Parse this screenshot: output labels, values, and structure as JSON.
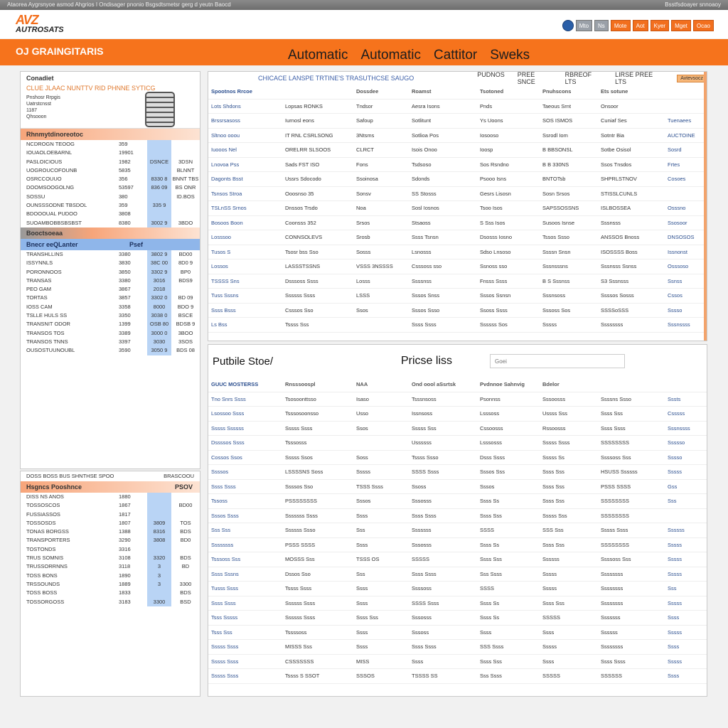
{
  "topbar": {
    "left": "Ataorea Aygrsnyoe asmod Ahgrios I Ondisager pnonio Bsgsdtsmetsr gerg d yeutn Baocd",
    "right": "Bsstfsdoayer snnoaoy"
  },
  "logo": {
    "mark": "AVZ",
    "text": "AUTROSATS"
  },
  "header_buttons": [
    {
      "label": "",
      "style": "b"
    },
    {
      "label": "Mto",
      "style": "g"
    },
    {
      "label": "Ns",
      "style": "g"
    },
    {
      "label": "Mote",
      "style": "o"
    },
    {
      "label": "Aot",
      "style": "o"
    },
    {
      "label": "Kyer",
      "style": "o"
    },
    {
      "label": "Mget",
      "style": "o"
    },
    {
      "label": "Ocao",
      "style": "o"
    }
  ],
  "nav": {
    "brand": "OJ GRAINGITARIS",
    "links": [
      "Automatic",
      "Automatic",
      "Cattitor",
      "Sweks"
    ]
  },
  "colors": {
    "accent": "#f6731c",
    "link": "#2c4f8f",
    "highlight": "#b9d4f5"
  },
  "left_panel": {
    "promo_title": "Conadiet",
    "promo_subtitle": "CLUE JLAAC NUNTTV RID PHNNE SYTICG",
    "promo_lines": [
      "Pnshosr Rrpgis",
      "Uatrstcnsst",
      "1187",
      "Qhsooon"
    ],
    "section1": "Rhnmytdinoreotoc",
    "section2": "Booctsoeaa",
    "section3": "Bnecr eeQLanter",
    "section3_val": "Psef",
    "rows": [
      [
        "NCDROGN TEOOG",
        "359",
        "",
        ""
      ],
      [
        "IOUAOLOEBARNL",
        "19901",
        "",
        ""
      ],
      [
        "PASLOICIOUS",
        "1982",
        "DSNCE",
        "3DSN"
      ],
      [
        "UOGROUCOFOUNB",
        "5835",
        "",
        "BLNNT"
      ],
      [
        "OSRCCOUUO",
        "356",
        "8330 8",
        "BNNT TBS"
      ],
      [
        "DOOMSOOGOLNG",
        "53597",
        "836 09",
        "BS ONR"
      ],
      [
        "SOSSU",
        "380",
        "",
        "ID.BOS"
      ],
      [
        "OUNSSSODNE TBSDOL",
        "359",
        "335 9",
        ""
      ],
      [
        "BDOOOUAL PUDOO",
        "3808",
        "",
        ""
      ],
      [
        "SUOAMBOBBSBSBST",
        "8380",
        "3002 9",
        "3BDO"
      ],
      [
        "TRANSHLLINS",
        "3380",
        "3802 9",
        "BD00"
      ],
      [
        "ISSYNNLS",
        "3830",
        "38C 00",
        "8D0 9"
      ],
      [
        "PORONNOOS",
        "3850",
        "3302 9",
        "BP0"
      ],
      [
        "TRANSAS",
        "3380",
        "3016",
        "BDS9"
      ],
      [
        "PEO GAM",
        "3867",
        "2018",
        ""
      ],
      [
        "TORTAS",
        "3857",
        "3302 0",
        "BD 09"
      ],
      [
        "IOSS CAM",
        "3358",
        "8000",
        "BDO 9"
      ],
      [
        "TSLLE HULS SS",
        "3350",
        "3038 0",
        "BSCE"
      ],
      [
        "TRANSNIT ODOR",
        "1399",
        "OSB 80",
        "BDSB 9"
      ],
      [
        "TRANSOS TOS",
        "3389",
        "3000 0",
        "3BOO"
      ],
      [
        "TRANSOS TNNS",
        "3397",
        "3030",
        "3SOS"
      ],
      [
        "OUSOSTUUNOUBL",
        "3590",
        "3050 9",
        "BDS 08"
      ]
    ],
    "panel2_title": "DOSS BOSS BUS SHNTHSE SPOO",
    "panel2_action": "BRASCOOU",
    "panel2_head": "Hsgncs Pooshnce",
    "panel2_head_val": "PSOV",
    "rows2": [
      [
        "DISS NS ANOS",
        "1880",
        "",
        ""
      ],
      [
        "TOSSOSCOS",
        "1867",
        "",
        "BD00"
      ],
      [
        "FUSSIASSOS",
        "1817",
        "",
        ""
      ],
      [
        "TOSSOSDS",
        "1807",
        "3809",
        "TOS"
      ],
      [
        "TONAS BORGSS",
        "1388",
        "8316",
        "BDS"
      ],
      [
        "TRANSPORTERS",
        "3290",
        "3808",
        "BD0"
      ],
      [
        "TOSTONDS",
        "3316",
        "",
        ""
      ],
      [
        "TRUS SOMNIS",
        "3108",
        "3320",
        "BDS"
      ],
      [
        "TRUSSORRNNS",
        "3118",
        "3",
        "BD"
      ],
      [
        "TOSS BONS",
        "1890",
        "3",
        ""
      ],
      [
        "TRSSOUNDS",
        "1889",
        "3",
        "3300"
      ],
      [
        "TOSS BOSS",
        "1833",
        "",
        "BDS"
      ],
      [
        "TOSSORGOSS",
        "3183",
        "3300",
        "BSD"
      ]
    ]
  },
  "upper_table": {
    "title": "CHICACE LANSPE TRTINE'S TRASUTHCSE SAUGO",
    "menu": [
      "PUDNOS",
      "PREE SNCE",
      "RBREOF LTS",
      "LIRSE PREE LTS"
    ],
    "badge": "Avtevsocz",
    "header": [
      "Spootnos Rrcoe",
      "",
      "Dossdee",
      "Roamst",
      "Tsotoned",
      "Pnuhscons",
      "Ets sotune",
      ""
    ],
    "rows": [
      [
        "Lots Shdons",
        "Lopsas RONKS",
        "Tndsor",
        "Aesra Isons",
        "Pnds",
        "Taeous Srnt",
        "Onsoor",
        ""
      ],
      [
        "Brssrsasoss",
        "Iurnosl eons",
        "Safoup",
        "Sotlitunt",
        "Ys Uoons",
        "SOS ISMOS",
        "Cuniaf Ses",
        "Tuenaees"
      ],
      [
        "Sltnoo ooou",
        "IT RNL CSRLSONG",
        "3Ntsms",
        "Sotlioa Pos",
        "Iosooso",
        "Ssrodl Iom",
        "Sotntr Bia",
        "AUCTOINE"
      ],
      [
        "Iuooos Nel",
        "ORELRR SLSOOS",
        "CLRCT",
        "Isois Onoo",
        "Ioosp",
        "B BBSONSL",
        "Sotbe Osisol",
        "Sosrd"
      ],
      [
        "Lnovoa Pss",
        "Sads FST ISO",
        "Fons",
        "Tsdsoso",
        "Sos Rsndno",
        "B B 330NS",
        "Ssos Tnsdos",
        "Frtes"
      ],
      [
        "Dagonts Bsst",
        "Ussrs Sdocodo",
        "Ssoinosa",
        "Sdonds",
        "Psooo Isns",
        "BNTOTsb",
        "SHPRLSTNOV",
        "Cosoes"
      ],
      [
        "Tsnsos Stroa",
        "Ooosnso 35",
        "Sonsv",
        "SS Stosss",
        "Gesrs Lisosn",
        "Sosn Srsos",
        "STISSLCUNLS",
        ""
      ],
      [
        "TSLnSS Srnos",
        "Dnssos Trsdo",
        "Noa",
        "Sosl Iosnos",
        "Tsoo Isos",
        "SAPSSOSSNS",
        "ISLBOSSEA",
        "Osssno"
      ],
      [
        "Bosoos Boon",
        "Coonsss 352",
        "Srsos",
        "Stsaoss",
        "S Sss Isos",
        "Susoos Isnse",
        "Sssnsss",
        "Ssosoor"
      ],
      [
        "Losssoo",
        "CONNSOLEVS",
        "Srosb",
        "Ssss Tsnsn",
        "Dsosss Iosno",
        "Tssos Ssso",
        "ANSSOS Bnoss",
        "DNSOSOS"
      ],
      [
        "Tusos S",
        "Tsosr bss Sso",
        "Sosss",
        "Lsnosss",
        "Sdso Lnsoso",
        "Ssssn Snsn",
        "ISOSSSS Boss",
        "Issnonst"
      ],
      [
        "Lossos",
        "LASSSTSSNS",
        "VSSS 3NSSSS",
        "Csssoss sso",
        "Ssnoss sso",
        "Sssnsssns",
        "Sssnsss Ssnss",
        "Osssoso"
      ],
      [
        "TSSSS Sns",
        "Dsssoss Ssss",
        "Losss",
        "Ssssnss",
        "Fnsss Ssss",
        "B S Sssnss",
        "S3 Sssnsss",
        "Ssnss"
      ],
      [
        "Tuss Sssns",
        "Ssssss Ssss",
        "LSSS",
        "Sssos Snss",
        "Sssos Ssnsn",
        "Sssnsoss",
        "Ssssos Sosss",
        "Cssos"
      ],
      [
        "Ssss Bsss",
        "Csssos Sso",
        "Ssos",
        "Sssos Ssso",
        "Ssoss Ssss",
        "Sssoss Sos",
        "SSSSoSSS",
        "Sssso"
      ],
      [
        "Ls Bss",
        "Tssss Sss",
        "",
        "Ssss Ssss",
        "Ssssss Sos",
        "Sssss",
        "Ssssssss",
        "Sssnssss"
      ]
    ]
  },
  "lower_table": {
    "store_title": "Putbile Stoe/",
    "price_title": "Pricse liss",
    "search_placeholder": "Goei",
    "header": [
      "GUUC MOSTERSS",
      "Rnsssoospl",
      "NAA",
      "Ond oool aSsrtsk",
      "Pvdnnoe Sahnvig",
      "Bdelor",
      "",
      ""
    ],
    "rows": [
      [
        "Tno Snrs Ssss",
        "Tsosoonttsso",
        "Isaso",
        "Tsssnsoss",
        "Psonnss",
        "Sssoosss",
        "Ssssns Ssso",
        "Sssts"
      ],
      [
        "Lsossoo Ssss",
        "Tsssosoonsso",
        "Usso",
        "Issnsoss",
        "Lsssoss",
        "Ussss Sss",
        "Ssss Sss",
        "Csssss"
      ],
      [
        "Sssss Ssssss",
        "Sssss Ssss",
        "Ssos",
        "Sssss Sss",
        "Cssoosss",
        "Rssoosss",
        "Ssss Ssss",
        "Sssnssss"
      ],
      [
        "Dssssos Ssss",
        "Tsssosss",
        "",
        "Ussssss",
        "Lsssosss",
        "Sssss Ssss",
        "SSSSSSSS",
        "Ssssso"
      ],
      [
        "Cossos Ssos",
        "Sssss Ssos",
        "Soss",
        "Tssss Ssso",
        "Dsss Ssss",
        "Sssss Ss",
        "Ssssoss Sss",
        "Sssso"
      ],
      [
        "Ssssos",
        "LSSSSNS Soss",
        "Sssss",
        "SSSS Ssss",
        "Sssos Sss",
        "Ssss Sss",
        "HSUSS Ssssss",
        "Sssss"
      ],
      [
        "Ssss Ssss",
        "Ssssos Sso",
        "TSSS Ssss",
        "Ssoss",
        "Sssos",
        "Ssss Sss",
        "PSSS SSSS",
        "Gss"
      ],
      [
        "Tssoss",
        "PSSSSSSSS",
        "Sssos",
        "Sssosss",
        "Ssss Ss",
        "Ssss Sss",
        "SSSSSSSS",
        "Sss"
      ],
      [
        "Sssos Ssss",
        "Sssssss Ssss",
        "Ssss",
        "Ssss Ssss",
        "Ssss Sss",
        "Sssss Sss",
        "SSSSSSSS",
        ""
      ],
      [
        "Sss Sss",
        "Ssssss Ssso",
        "Sss",
        "Sssssss",
        "SSSS",
        "SSS Sss",
        "Sssss Ssss",
        "Ssssss"
      ],
      [
        "Ssssssss",
        "PSSS SSSS",
        "Ssss",
        "Sssosss",
        "Ssss Ss",
        "Ssss Sss",
        "SSSSSSSS",
        "Sssss"
      ],
      [
        "Tsssoss Sss",
        "MOSSS Sss",
        "TSSS OS",
        "SSSSS",
        "Ssss Sss",
        "Ssssss",
        "Ssssoss Sss",
        "Sssss"
      ],
      [
        "Ssss Sssns",
        "Dssos Sso",
        "Sss",
        "Ssss Ssss",
        "Sss Ssss",
        "Sssss",
        "Ssssssss",
        "Sssss"
      ],
      [
        "Tusss Ssss",
        "Tssss Ssss",
        "Ssss",
        "Ssssoss",
        "SSSS",
        "Sssss",
        "Ssssssss",
        "Sss"
      ],
      [
        "Ssss Ssss",
        "Ssssss Ssss",
        "Ssss",
        "SSSS Ssss",
        "Ssss Ss",
        "Ssss Sss",
        "Ssssssss",
        "Sssss"
      ],
      [
        "Tsss Sssss",
        "Ssssss Ssss",
        "Ssss Sss",
        "Sssosss",
        "Ssss Ss",
        "SSSSS",
        "Sssssss",
        "Ssss"
      ],
      [
        "Tsss Sss",
        "Tssssoss",
        "Ssss",
        "Sssoss",
        "Ssss",
        "Ssss",
        "Ssssss",
        "Sssss"
      ],
      [
        "Sssss Ssss",
        "MISSS Sss",
        "Ssss",
        "Ssss Ssss",
        "SSS Ssss",
        "Sssss",
        "Ssssssss",
        "Ssss"
      ],
      [
        "Sssss Ssss",
        "CSSSSSSS",
        "MISS",
        "Ssss",
        "Ssss Sss",
        "Ssss",
        "Ssss Ssss",
        "Sssss"
      ],
      [
        "Sssss Ssss",
        "Tssss S SSOT",
        "SSSOS",
        "TSSSS SS",
        "Sss Ssss",
        "SSSSS",
        "SSSSSS",
        "Ssss"
      ]
    ]
  }
}
